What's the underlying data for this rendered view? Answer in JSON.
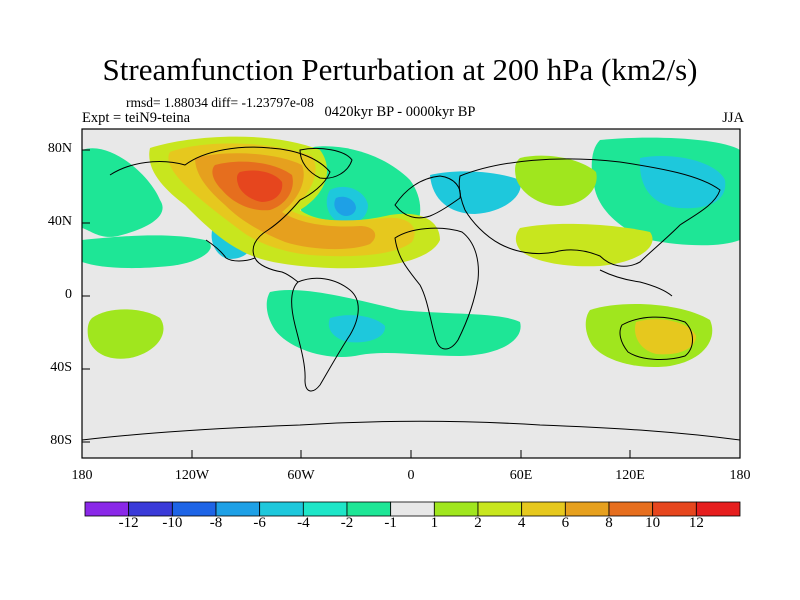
{
  "title": "Streamfunction Perturbation at 200 hPa (km2/s)",
  "stats": "rmsd= 1.88034 diff= -1.23797e-08",
  "experiment": "Expt = teiN9-teina",
  "period": "0420kyr BP - 0000kyr BP",
  "season": "JJA",
  "lat_ticks": [
    "80N",
    "40N",
    "0",
    "40S",
    "80S"
  ],
  "lon_ticks": [
    "180",
    "120W",
    "60W",
    "0",
    "60E",
    "120E",
    "180"
  ],
  "colorbar": {
    "labels": [
      "-12",
      "-10",
      "-8",
      "-6",
      "-4",
      "-2",
      "-1",
      "1",
      "2",
      "4",
      "6",
      "8",
      "10",
      "12"
    ],
    "colors": [
      "#8a28e8",
      "#3a3ad8",
      "#1e64e6",
      "#1ea0e6",
      "#1ec8dc",
      "#1ee6c8",
      "#1ee696",
      "#e8e8e8",
      "#a0e61e",
      "#c8e61e",
      "#e6c81e",
      "#e6a01e",
      "#e66e1e",
      "#e6461e",
      "#e61e1e"
    ]
  }
}
